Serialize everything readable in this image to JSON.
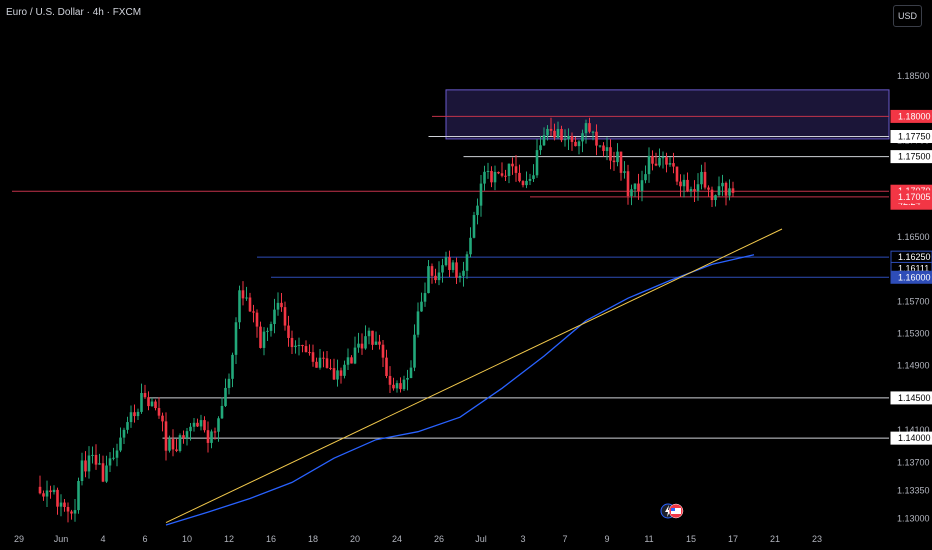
{
  "header": {
    "title": "Euro / U.S. Dollar · 4h · FXCM",
    "currency_button": "USD"
  },
  "colors": {
    "background": "#000000",
    "up_candle": "#22a87a",
    "down_candle": "#f23645",
    "moving_average": "#2962ff",
    "trendline": "#f2c94c",
    "zone_fill": "#1b1538",
    "zone_border": "#6a5acd",
    "red_level": "#c2334a",
    "blue_level": "#2e4db8",
    "white_level": "#cfd2d8"
  },
  "chart_data": {
    "type": "candlestick",
    "symbol": "Euro / U.S. Dollar",
    "timeframe": "4h",
    "source": "FXCM",
    "ylim": [
      1.1292,
      1.1895
    ],
    "y_ticks": [
      "1.18500",
      "1.17700",
      "1.16500",
      "1.15700",
      "1.15300",
      "1.14900",
      "1.14100",
      "1.13700",
      "1.13350",
      "1.13000"
    ],
    "x_ticks": [
      {
        "label": "29",
        "bar": -6
      },
      {
        "label": "Jun",
        "bar": 6
      },
      {
        "label": "4",
        "bar": 18
      },
      {
        "label": "6",
        "bar": 30
      },
      {
        "label": "10",
        "bar": 42
      },
      {
        "label": "12",
        "bar": 54
      },
      {
        "label": "16",
        "bar": 66
      },
      {
        "label": "18",
        "bar": 78
      },
      {
        "label": "20",
        "bar": 90
      },
      {
        "label": "24",
        "bar": 102
      },
      {
        "label": "26",
        "bar": 114
      },
      {
        "label": "Jul",
        "bar": 126
      },
      {
        "label": "3",
        "bar": 138
      },
      {
        "label": "7",
        "bar": 150
      },
      {
        "label": "9",
        "bar": 162
      },
      {
        "label": "11",
        "bar": 174
      },
      {
        "label": "15",
        "bar": 186
      },
      {
        "label": "17",
        "bar": 198
      },
      {
        "label": "21",
        "bar": 210
      },
      {
        "label": "23",
        "bar": 222
      }
    ],
    "price_labels": [
      {
        "text": "1.18000",
        "price": 1.18,
        "style": "red"
      },
      {
        "text": "1.17750",
        "price": 1.1775,
        "style": "white"
      },
      {
        "text": "1.17500",
        "price": 1.175,
        "style": "white"
      },
      {
        "text": "1.17070",
        "sub": "42:24",
        "price": 1.1707,
        "style": "red-current"
      },
      {
        "text": "1.17005",
        "price": 1.17,
        "style": "red"
      },
      {
        "text": "1.16250",
        "price": 1.1625,
        "style": "blue"
      },
      {
        "text": "1.16111",
        "price": 1.1611,
        "style": "blue"
      },
      {
        "text": "1.16000",
        "price": 1.16,
        "style": "blue-solid"
      },
      {
        "text": "1.14500",
        "price": 1.145,
        "style": "white"
      },
      {
        "text": "1.14000",
        "price": 1.14,
        "style": "white"
      }
    ],
    "horizontal_lines": [
      {
        "price": 1.18,
        "from_bar": 112,
        "color": "red"
      },
      {
        "price": 1.1775,
        "from_bar": 111,
        "color": "white"
      },
      {
        "price": 1.175,
        "from_bar": 121,
        "color": "white"
      },
      {
        "price": 1.1707,
        "from_bar": -8,
        "color": "red"
      },
      {
        "price": 1.17,
        "from_bar": 140,
        "color": "red"
      },
      {
        "price": 1.1625,
        "from_bar": 62,
        "color": "blue"
      },
      {
        "price": 1.16,
        "from_bar": 66,
        "color": "blue"
      },
      {
        "price": 1.145,
        "from_bar": 31,
        "color": "white"
      },
      {
        "price": 1.14,
        "from_bar": 35,
        "color": "white"
      }
    ],
    "zone": {
      "price_top": 1.1833,
      "price_bottom": 1.1772,
      "from_bar": 116
    },
    "trendline": {
      "bar1": 36,
      "price1": 1.1295,
      "bar2": 212,
      "price2": 1.166
    },
    "anchors": [
      [
        0,
        1.1342
      ],
      [
        3,
        1.133
      ],
      [
        6,
        1.132
      ],
      [
        9,
        1.13
      ],
      [
        12,
        1.1362
      ],
      [
        15,
        1.138
      ],
      [
        18,
        1.1348
      ],
      [
        21,
        1.1372
      ],
      [
        24,
        1.1415
      ],
      [
        27,
        1.1435
      ],
      [
        30,
        1.1455
      ],
      [
        33,
        1.1442
      ],
      [
        36,
        1.1395
      ],
      [
        39,
        1.1388
      ],
      [
        42,
        1.1405
      ],
      [
        45,
        1.1422
      ],
      [
        48,
        1.1395
      ],
      [
        51,
        1.142
      ],
      [
        54,
        1.1475
      ],
      [
        57,
        1.158
      ],
      [
        60,
        1.156
      ],
      [
        63,
        1.152
      ],
      [
        66,
        1.1545
      ],
      [
        69,
        1.157
      ],
      [
        72,
        1.1505
      ],
      [
        75,
        1.152
      ],
      [
        78,
        1.1488
      ],
      [
        81,
        1.1495
      ],
      [
        84,
        1.147
      ],
      [
        87,
        1.1485
      ],
      [
        90,
        1.151
      ],
      [
        93,
        1.1525
      ],
      [
        96,
        1.1525
      ],
      [
        99,
        1.148
      ],
      [
        102,
        1.146
      ],
      [
        105,
        1.147
      ],
      [
        108,
        1.155
      ],
      [
        111,
        1.1605
      ],
      [
        114,
        1.1602
      ],
      [
        117,
        1.162
      ],
      [
        120,
        1.1605
      ],
      [
        123,
        1.164
      ],
      [
        126,
        1.172
      ],
      [
        129,
        1.1725
      ],
      [
        132,
        1.1728
      ],
      [
        135,
        1.1732
      ],
      [
        138,
        1.1715
      ],
      [
        141,
        1.173
      ],
      [
        144,
        1.1785
      ],
      [
        147,
        1.1775
      ],
      [
        150,
        1.178
      ],
      [
        153,
        1.176
      ],
      [
        156,
        1.179
      ],
      [
        159,
        1.1772
      ],
      [
        162,
        1.176
      ],
      [
        165,
        1.1748
      ],
      [
        168,
        1.171
      ],
      [
        171,
        1.1718
      ],
      [
        174,
        1.1745
      ],
      [
        177,
        1.1752
      ],
      [
        180,
        1.1738
      ],
      [
        183,
        1.1722
      ],
      [
        186,
        1.1712
      ],
      [
        189,
        1.1725
      ],
      [
        192,
        1.17
      ],
      [
        195,
        1.1712
      ],
      [
        198,
        1.1705
      ]
    ],
    "moving_average": [
      [
        36,
        1.1292
      ],
      [
        48,
        1.1308
      ],
      [
        60,
        1.1325
      ],
      [
        72,
        1.1345
      ],
      [
        84,
        1.1375
      ],
      [
        96,
        1.1398
      ],
      [
        108,
        1.1408
      ],
      [
        120,
        1.1426
      ],
      [
        132,
        1.1462
      ],
      [
        144,
        1.1502
      ],
      [
        156,
        1.1546
      ],
      [
        168,
        1.1574
      ],
      [
        180,
        1.1596
      ],
      [
        192,
        1.1616
      ],
      [
        204,
        1.1628
      ]
    ]
  },
  "footer_icons": [
    "lightning-icon",
    "us-flag-icon"
  ]
}
